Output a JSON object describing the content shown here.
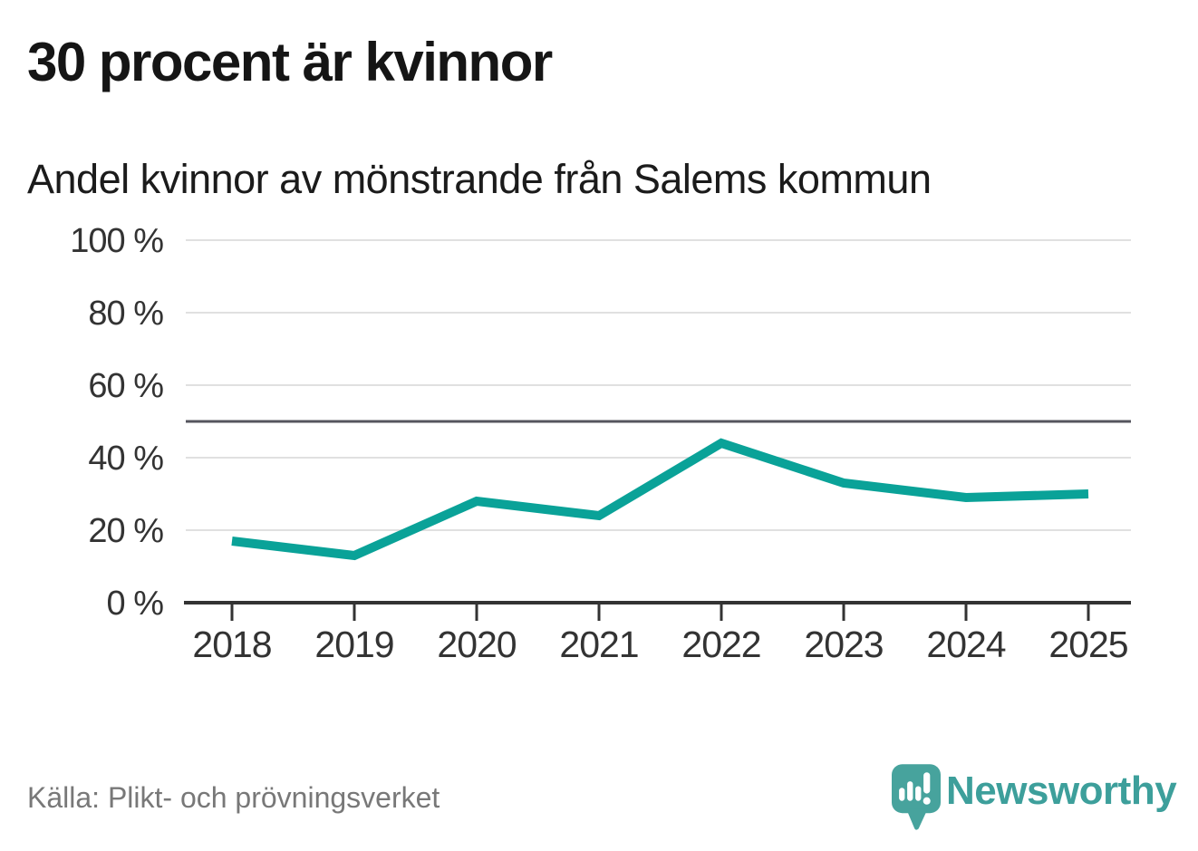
{
  "header": {
    "title": "30 procent är kvinnor",
    "subtitle": "Andel kvinnor av mönstrande från Salems kommun"
  },
  "chart_data": {
    "type": "line",
    "title": "30 procent är kvinnor",
    "subtitle": "Andel kvinnor av mönstrande från Salems kommun",
    "categories": [
      "2018",
      "2019",
      "2020",
      "2021",
      "2022",
      "2023",
      "2024",
      "2025"
    ],
    "series": [
      {
        "name": "Andel kvinnor av mönstrande",
        "values": [
          17,
          13,
          28,
          24,
          44,
          33,
          29,
          30
        ],
        "color": "#0aa298"
      }
    ],
    "unit": "%",
    "ylim": [
      0,
      100
    ],
    "yticks": [
      0,
      20,
      40,
      60,
      80,
      100
    ],
    "ytick_labels": [
      "0 %",
      "20 %",
      "40 %",
      "60 %",
      "80 %",
      "100 %"
    ],
    "xlabel": "",
    "ylabel": "",
    "reference_line": {
      "value": 50
    },
    "grid": "horizontal",
    "legend": "none"
  },
  "footer": {
    "source": "Källa: Plikt- och prövningsverket",
    "brand": {
      "name": "Newsworthy",
      "icon": "newsworthy-speech-bubble-chart-icon"
    }
  },
  "colors": {
    "background": "#ffffff",
    "line": "#0aa298",
    "grid": "#e0e0e0",
    "axis": "#333333",
    "tick_text": "#333333",
    "reference_line": "#55555e",
    "title": "#151515",
    "subtitle": "#1b1b1b",
    "source_text": "#787878",
    "brand": "#3d9f9b",
    "brand_icon": "#47a39d"
  }
}
